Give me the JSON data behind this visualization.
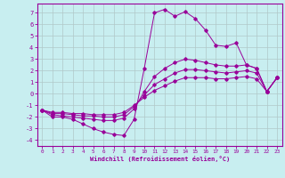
{
  "xlabel": "Windchill (Refroidissement éolien,°C)",
  "background_color": "#c8eef0",
  "grid_color": "#b0c8c8",
  "line_color": "#990099",
  "xlim": [
    -0.5,
    23.5
  ],
  "ylim": [
    -4.5,
    7.8
  ],
  "yticks": [
    -4,
    -3,
    -2,
    -1,
    0,
    1,
    2,
    3,
    4,
    5,
    6,
    7
  ],
  "xticks": [
    0,
    1,
    2,
    3,
    4,
    5,
    6,
    7,
    8,
    9,
    10,
    11,
    12,
    13,
    14,
    15,
    16,
    17,
    18,
    19,
    20,
    21,
    22,
    23
  ],
  "curves": [
    {
      "x": [
        0,
        1,
        2,
        3,
        4,
        5,
        6,
        7,
        8,
        9,
        10,
        11,
        12,
        13,
        14,
        15,
        16,
        17,
        18,
        19,
        20,
        21,
        22,
        23
      ],
      "y": [
        -1.4,
        -2.0,
        -2.0,
        -2.2,
        -2.6,
        -3.0,
        -3.3,
        -3.5,
        -3.6,
        -2.2,
        2.2,
        7.0,
        7.3,
        6.7,
        7.1,
        6.5,
        5.5,
        4.2,
        4.1,
        4.4,
        2.5,
        2.2,
        0.2,
        1.4
      ]
    },
    {
      "x": [
        0,
        1,
        2,
        3,
        4,
        5,
        6,
        7,
        8,
        9,
        10,
        11,
        12,
        13,
        14,
        15,
        16,
        17,
        18,
        19,
        20,
        21,
        22,
        23
      ],
      "y": [
        -1.4,
        -1.8,
        -1.9,
        -2.0,
        -2.1,
        -2.2,
        -2.3,
        -2.3,
        -2.1,
        -1.3,
        0.2,
        1.5,
        2.2,
        2.7,
        3.0,
        2.9,
        2.7,
        2.5,
        2.4,
        2.4,
        2.5,
        2.2,
        0.2,
        1.4
      ]
    },
    {
      "x": [
        0,
        1,
        2,
        3,
        4,
        5,
        6,
        7,
        8,
        9,
        10,
        11,
        12,
        13,
        14,
        15,
        16,
        17,
        18,
        19,
        20,
        21,
        22,
        23
      ],
      "y": [
        -1.4,
        -1.7,
        -1.7,
        -1.8,
        -1.9,
        -1.9,
        -2.0,
        -2.0,
        -1.8,
        -1.1,
        -0.1,
        0.8,
        1.3,
        1.8,
        2.1,
        2.1,
        2.0,
        1.9,
        1.8,
        1.9,
        2.0,
        1.8,
        0.2,
        1.4
      ]
    },
    {
      "x": [
        0,
        1,
        2,
        3,
        4,
        5,
        6,
        7,
        8,
        9,
        10,
        11,
        12,
        13,
        14,
        15,
        16,
        17,
        18,
        19,
        20,
        21,
        22,
        23
      ],
      "y": [
        -1.4,
        -1.6,
        -1.6,
        -1.7,
        -1.7,
        -1.8,
        -1.8,
        -1.8,
        -1.6,
        -1.0,
        -0.3,
        0.3,
        0.7,
        1.1,
        1.4,
        1.4,
        1.4,
        1.3,
        1.3,
        1.4,
        1.5,
        1.3,
        0.2,
        1.4
      ]
    }
  ]
}
